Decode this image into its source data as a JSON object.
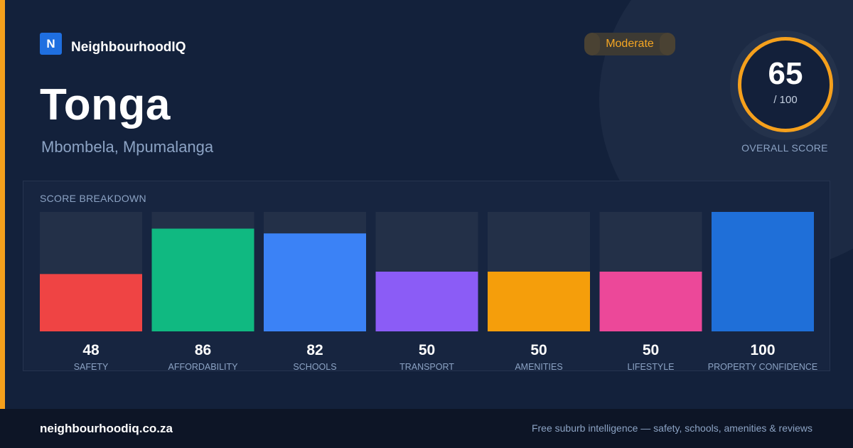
{
  "brand": {
    "logo_letter": "N",
    "name": "NeighbourhoodIQ"
  },
  "location": {
    "suburb": "Tonga",
    "region": "Mbombela, Mpumalanga"
  },
  "rating": {
    "label": "Moderate"
  },
  "overall": {
    "score": "65",
    "out_of": "/ 100",
    "label": "OVERALL SCORE"
  },
  "breakdown": {
    "title": "SCORE BREAKDOWN"
  },
  "colors": {
    "accent": "#f5a01c",
    "background": "#13213b",
    "track": "#233048"
  },
  "chart_data": {
    "type": "bar",
    "title": "SCORE BREAKDOWN",
    "categories": [
      "SAFETY",
      "AFFORDABILITY",
      "SCHOOLS",
      "TRANSPORT",
      "AMENITIES",
      "LIFESTYLE",
      "PROPERTY CONFIDENCE"
    ],
    "values": [
      48,
      86,
      82,
      50,
      50,
      50,
      100
    ],
    "colors": [
      "#ef4444",
      "#10b981",
      "#3b82f6",
      "#8b5cf6",
      "#f59e0b",
      "#ec4899",
      "#1f6fd8"
    ],
    "ylim": [
      0,
      100
    ]
  },
  "footer": {
    "url": "neighbourhoodiq.co.za",
    "tagline": "Free suburb intelligence — safety, schools, amenities & reviews"
  }
}
